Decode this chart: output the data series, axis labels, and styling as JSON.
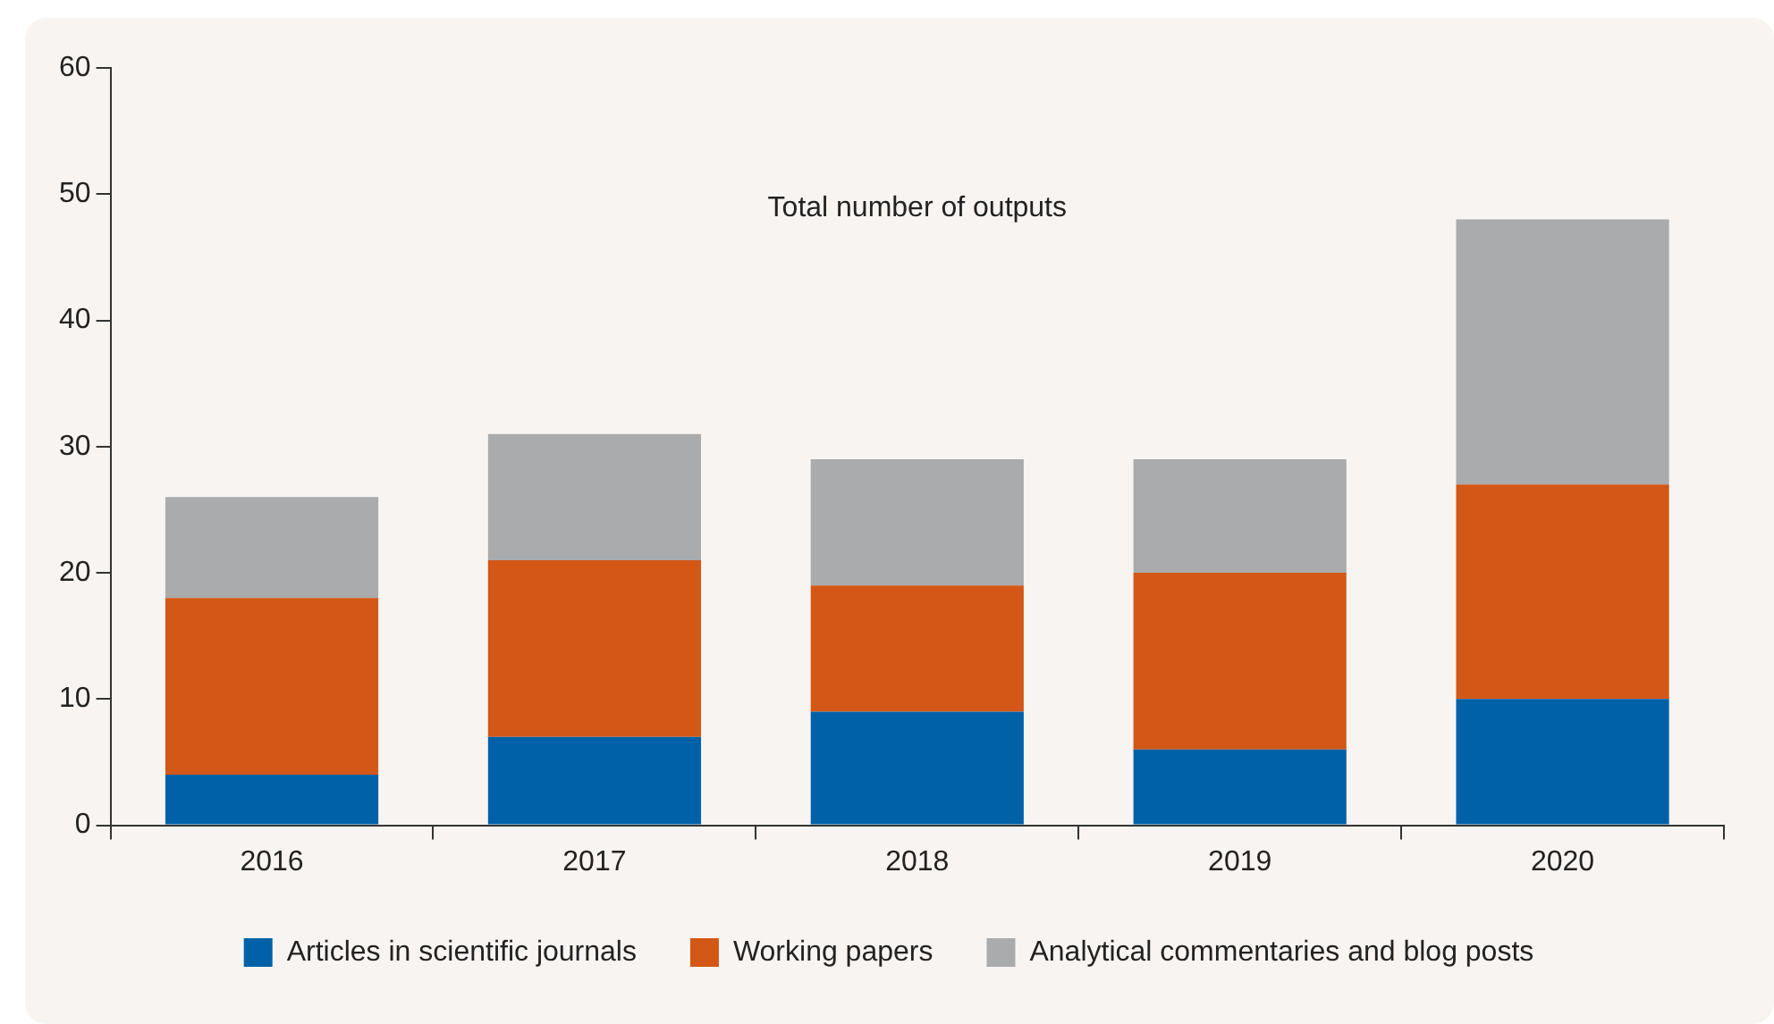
{
  "chart_data": {
    "type": "bar",
    "title": "Total number of outputs",
    "stacked": true,
    "categories": [
      "2016",
      "2017",
      "2018",
      "2019",
      "2020"
    ],
    "series": [
      {
        "name": "Articles in scientific journals",
        "color": "#0061a8",
        "values": [
          4,
          7,
          9,
          6,
          10
        ]
      },
      {
        "name": "Working papers",
        "color": "#d35716",
        "values": [
          14,
          14,
          10,
          14,
          17
        ]
      },
      {
        "name": "Analytical commentaries and blog posts",
        "color": "#a9abad",
        "values": [
          8,
          10,
          10,
          9,
          21
        ]
      }
    ],
    "ylim": [
      0,
      60
    ],
    "yticks": [
      0,
      10,
      20,
      30,
      40,
      50,
      60
    ],
    "grid": false,
    "legend": "bottom"
  }
}
